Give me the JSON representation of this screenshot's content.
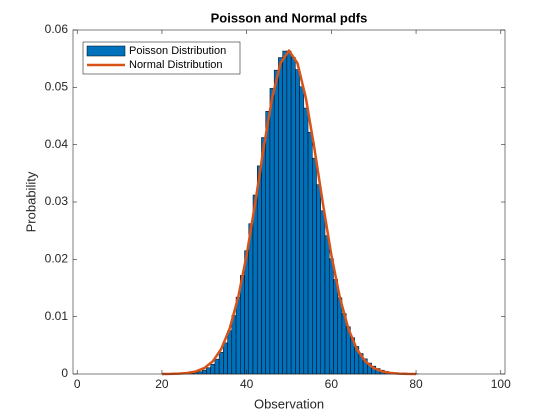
{
  "chart_data": {
    "type": "bar",
    "title": "Poisson and Normal pdfs",
    "xlabel": "Observation",
    "ylabel": "Probability",
    "xlim": [
      -1,
      101
    ],
    "xticks": [
      0,
      20,
      40,
      60,
      80,
      100
    ],
    "ylim": [
      0,
      0.06
    ],
    "yticks": [
      0,
      0.01,
      0.02,
      0.03,
      0.04,
      0.05,
      0.06
    ],
    "legend": "northwest",
    "series": [
      {
        "name": "Poisson Distribution",
        "type": "bar",
        "color": "#0072bd",
        "x": [
          24,
          25,
          26,
          27,
          28,
          29,
          30,
          31,
          32,
          33,
          34,
          35,
          36,
          37,
          38,
          39,
          40,
          41,
          42,
          43,
          44,
          45,
          46,
          47,
          48,
          49,
          50,
          51,
          52,
          53,
          54,
          55,
          56,
          57,
          58,
          59,
          60,
          61,
          62,
          63,
          64,
          65,
          66,
          67,
          68,
          69,
          70,
          71,
          72,
          73,
          74,
          75,
          76,
          77,
          78,
          79,
          80
        ],
        "values": [
          2e-05,
          4e-05,
          7e-05,
          0.00013,
          0.00024,
          0.00041,
          0.00068,
          0.00109,
          0.00171,
          0.00259,
          0.0038,
          0.00543,
          0.00755,
          0.0102,
          0.01342,
          0.0172,
          0.0215,
          0.02622,
          0.03122,
          0.0363,
          0.04125,
          0.04583,
          0.04982,
          0.053,
          0.0552,
          0.05633,
          0.05633,
          0.05523,
          0.0531,
          0.0501,
          0.04639,
          0.04217,
          0.03765,
          0.03303,
          0.02847,
          0.02413,
          0.02011,
          0.01648,
          0.01329,
          0.01055,
          0.00824,
          0.00634,
          0.0048,
          0.00358,
          0.00264,
          0.00191,
          0.00137,
          0.00096,
          0.00067,
          0.00046,
          0.00031,
          0.00021,
          0.00014,
          9e-05,
          6e-05,
          4e-05,
          2e-05
        ]
      },
      {
        "name": "Normal Distribution",
        "type": "line",
        "color": "#d95319",
        "x": [
          20,
          22,
          24,
          26,
          28,
          30,
          32,
          34,
          36,
          38,
          40,
          42,
          44,
          46,
          48,
          50,
          52,
          54,
          56,
          58,
          60,
          62,
          64,
          66,
          68,
          70,
          72,
          74,
          76,
          78,
          80
        ],
        "values": [
          1e-05,
          2e-05,
          7e-05,
          0.00018,
          0.00045,
          0.00103,
          0.00221,
          0.00436,
          0.00795,
          0.01337,
          0.02076,
          0.02975,
          0.03936,
          0.04808,
          0.05421,
          0.05642,
          0.05421,
          0.04808,
          0.03936,
          0.02975,
          0.02076,
          0.01337,
          0.00795,
          0.00436,
          0.00221,
          0.00103,
          0.00045,
          0.00018,
          7e-05,
          2e-05,
          1e-05
        ]
      }
    ]
  }
}
